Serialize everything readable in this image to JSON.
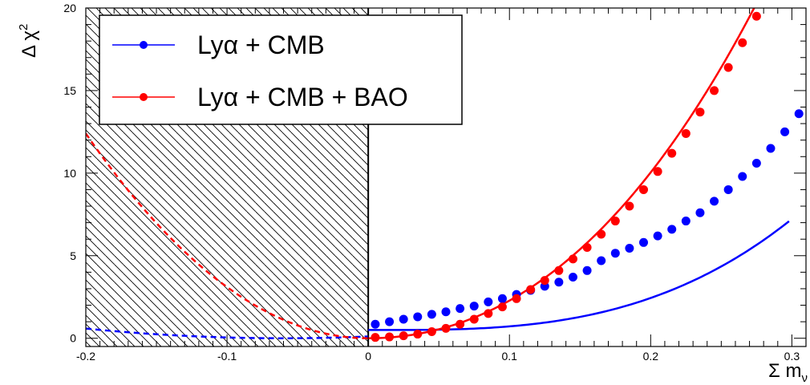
{
  "chart_data": {
    "type": "line",
    "xlabel_main": "Σ m",
    "xlabel_sub": "ν",
    "ylabel_main": "Δ χ",
    "ylabel_sup": "2",
    "xlim": [
      -0.2,
      0.31
    ],
    "ylim": [
      -0.5,
      20
    ],
    "x_ticks": [
      {
        "value": -0.2,
        "label": "-0.2"
      },
      {
        "value": -0.1,
        "label": "-0.1"
      },
      {
        "value": 0,
        "label": "0"
      },
      {
        "value": 0.1,
        "label": "0.1"
      },
      {
        "value": 0.2,
        "label": "0.2"
      },
      {
        "value": 0.3,
        "label": "0.3"
      }
    ],
    "y_ticks": [
      {
        "value": 0,
        "label": "0"
      },
      {
        "value": 5,
        "label": "5"
      },
      {
        "value": 10,
        "label": "10"
      },
      {
        "value": 15,
        "label": "15"
      },
      {
        "value": 20,
        "label": "20"
      }
    ],
    "excluded_region": {
      "x_from": -0.2,
      "x_to": 0,
      "pattern": "hatched"
    },
    "series": [
      {
        "name": "Lyα + CMB",
        "color": "#0000ff",
        "points": [
          [
            0.005,
            0.85
          ],
          [
            0.015,
            1.0
          ],
          [
            0.025,
            1.15
          ],
          [
            0.035,
            1.3
          ],
          [
            0.045,
            1.45
          ],
          [
            0.055,
            1.6
          ],
          [
            0.065,
            1.8
          ],
          [
            0.075,
            1.95
          ],
          [
            0.085,
            2.2
          ],
          [
            0.095,
            2.4
          ],
          [
            0.105,
            2.65
          ],
          [
            0.115,
            2.9
          ],
          [
            0.125,
            3.15
          ],
          [
            0.135,
            3.4
          ],
          [
            0.145,
            3.7
          ],
          [
            0.155,
            4.1
          ],
          [
            0.165,
            4.7
          ],
          [
            0.175,
            5.15
          ],
          [
            0.185,
            5.45
          ],
          [
            0.195,
            5.8
          ],
          [
            0.205,
            6.2
          ],
          [
            0.215,
            6.6
          ],
          [
            0.225,
            7.1
          ],
          [
            0.235,
            7.6
          ],
          [
            0.245,
            8.3
          ],
          [
            0.255,
            9.0
          ],
          [
            0.265,
            9.8
          ],
          [
            0.275,
            10.6
          ],
          [
            0.285,
            11.5
          ],
          [
            0.295,
            12.5
          ],
          [
            0.305,
            13.6
          ]
        ],
        "fit": {
          "x0": 0.018,
          "a": 0.5,
          "b": 11.2,
          "c": 260,
          "x_from": 0,
          "x_to": 0.298
        },
        "extrapolation": {
          "x0": -0.06,
          "a": 0.0,
          "b": 30,
          "x_from": -0.2,
          "x_to": 0
        }
      },
      {
        "name": "Lyα + CMB + BAO",
        "color": "#ff0000",
        "points": [
          [
            0.005,
            0.05
          ],
          [
            0.015,
            0.08
          ],
          [
            0.025,
            0.15
          ],
          [
            0.035,
            0.25
          ],
          [
            0.045,
            0.4
          ],
          [
            0.055,
            0.6
          ],
          [
            0.065,
            0.85
          ],
          [
            0.075,
            1.15
          ],
          [
            0.085,
            1.5
          ],
          [
            0.095,
            1.9
          ],
          [
            0.105,
            2.4
          ],
          [
            0.115,
            2.95
          ],
          [
            0.125,
            3.5
          ],
          [
            0.135,
            4.1
          ],
          [
            0.145,
            4.8
          ],
          [
            0.155,
            5.5
          ],
          [
            0.165,
            6.3
          ],
          [
            0.175,
            7.1
          ],
          [
            0.185,
            8.0
          ],
          [
            0.195,
            9.0
          ],
          [
            0.205,
            10.1
          ],
          [
            0.215,
            11.2
          ],
          [
            0.225,
            12.4
          ],
          [
            0.235,
            13.7
          ],
          [
            0.245,
            15.0
          ],
          [
            0.255,
            16.4
          ],
          [
            0.265,
            17.9
          ],
          [
            0.275,
            19.5
          ]
        ],
        "fit": {
          "x0": 0.0,
          "a": 0.0,
          "b": 205,
          "c": 230,
          "x_from": 0,
          "x_to": 0.306
        },
        "extrapolation": {
          "x0": 0.0,
          "a": 0.0,
          "b": 310,
          "x_from": -0.2,
          "x_to": 0
        }
      }
    ],
    "legend": {
      "position": "top-left",
      "entries": [
        {
          "label": "Lyα + CMB",
          "color": "#0000ff"
        },
        {
          "label": "Lyα + CMB + BAO",
          "color": "#ff0000"
        }
      ]
    }
  }
}
